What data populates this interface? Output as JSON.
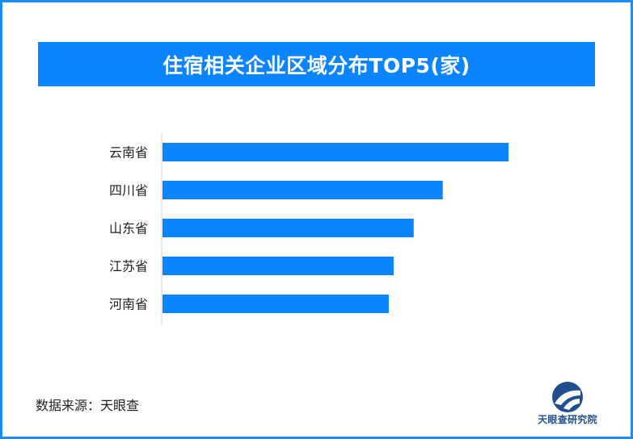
{
  "chart_data": {
    "type": "bar",
    "orientation": "horizontal",
    "title": "住宿相关企业区域分布TOP5(家)",
    "categories": [
      "云南省",
      "四川省",
      "山东省",
      "江苏省",
      "河南省"
    ],
    "values": [
      100,
      81,
      72.6,
      66.8,
      65.4
    ],
    "xlim": [
      0,
      100
    ],
    "xlabel": "",
    "ylabel": "",
    "grid": false,
    "bar_color": "#0a84ff"
  },
  "source": "数据来源：天眼查",
  "logo": {
    "text": "天眼查研究院",
    "icon": "tianyancha-logo-icon",
    "color": "#1f4f8f"
  },
  "colors": {
    "border": "#1a8cff",
    "title_bg": "#0a84ff",
    "title_text": "#ffffff"
  }
}
